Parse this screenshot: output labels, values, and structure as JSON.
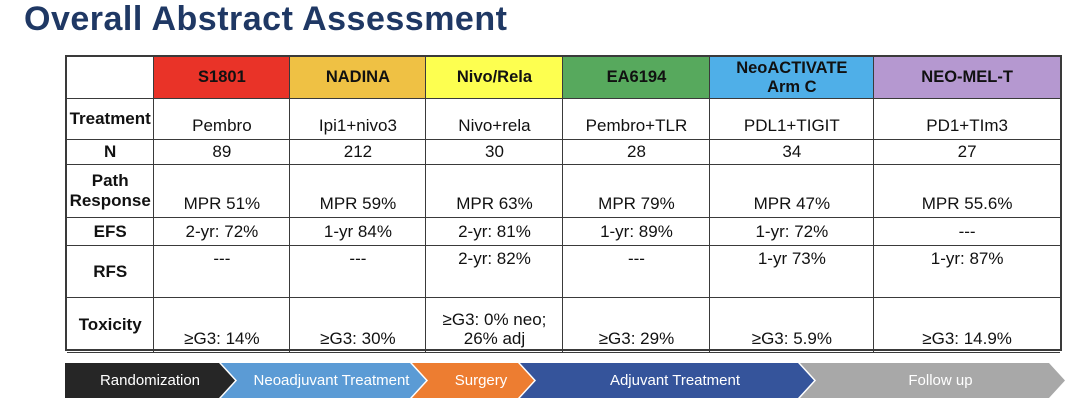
{
  "title": "Overall Abstract Assessment",
  "title_color": "#1F3864",
  "table": {
    "columns": [
      {
        "label": "",
        "color": "#FFFFFF"
      },
      {
        "label": "S1801",
        "color": "#E93328"
      },
      {
        "label": "NADINA",
        "color": "#EFC144"
      },
      {
        "label": "Nivo/Rela",
        "color": "#FDFF50"
      },
      {
        "label": "EA6194",
        "color": "#57A95D"
      },
      {
        "label": "NeoACTIVATE\nArm C",
        "color": "#4FAFE8"
      },
      {
        "label": "NEO-MEL-T",
        "color": "#B598D0"
      }
    ],
    "rows": [
      {
        "label": "Treatment",
        "values": [
          "Pembro",
          "Ipi1+nivo3",
          "Nivo+rela",
          "Pembro+TLR",
          "PDL1+TIGIT",
          "PD1+TIm3"
        ]
      },
      {
        "label": "N",
        "values": [
          "89",
          "212",
          "30",
          "28",
          "34",
          "27"
        ]
      },
      {
        "label": "Path Response",
        "values": [
          "MPR 51%",
          "MPR 59%",
          "MPR 63%",
          "MPR 79%",
          "MPR 47%",
          "MPR 55.6%"
        ]
      },
      {
        "label": "EFS",
        "values": [
          "2-yr: 72%",
          "1-yr 84%",
          "2-yr: 81%",
          "1-yr: 89%",
          "1-yr: 72%",
          "---"
        ]
      },
      {
        "label": "RFS",
        "values": [
          "---",
          "---",
          "2-yr: 82%",
          "---",
          "1-yr  73%",
          "1-yr: 87%"
        ]
      },
      {
        "label": "Toxicity",
        "values": [
          "≥G3: 14%",
          "≥G3: 30%",
          "≥G3: 0% neo;\n26% adj",
          "≥G3: 29%",
          "≥G3: 5.9%",
          "≥G3: 14.9%"
        ]
      }
    ]
  },
  "timeline": {
    "steps": [
      {
        "label": "Randomization",
        "color": "#262626"
      },
      {
        "label": "Neoadjuvant Treatment",
        "color": "#5B9BD5"
      },
      {
        "label": "Surgery",
        "color": "#ED7D31"
      },
      {
        "label": "Adjuvant Treatment",
        "color": "#35549B"
      },
      {
        "label": "Follow up",
        "color": "#A8A8A8"
      }
    ]
  }
}
